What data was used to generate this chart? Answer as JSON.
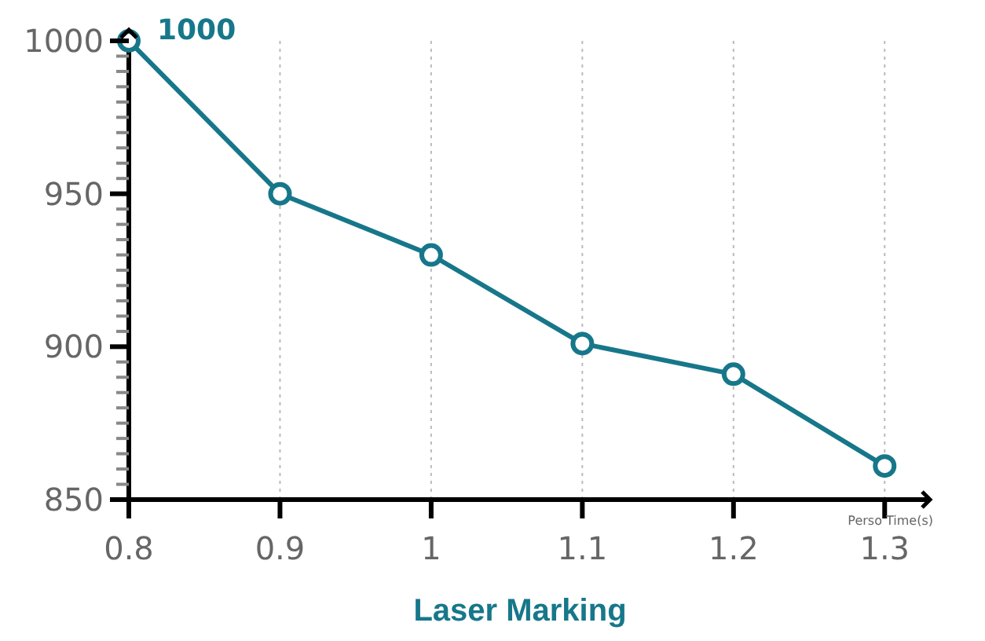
{
  "chart_data": {
    "type": "line",
    "title": "Laser Marking",
    "xlabel": "Perso Time(s)",
    "x": [
      0.8,
      0.9,
      1,
      1.1,
      1.2,
      1.3
    ],
    "series": [
      {
        "color": "#17778a",
        "values": [
          1000,
          950,
          930,
          901,
          891,
          861
        ],
        "value_labels": [
          "1000",
          null,
          null,
          null,
          null,
          null
        ]
      }
    ],
    "xlim": [
      0.8,
      1.33
    ],
    "xticks": [
      0.8,
      0.9,
      1,
      1.1,
      1.2,
      1.3
    ],
    "ylim": [
      850,
      1000
    ],
    "yticks": [
      850,
      {
        "value": 855,
        "label": null
      },
      {
        "value": 860,
        "label": null
      },
      {
        "value": 865,
        "label": null
      },
      {
        "value": 870,
        "label": null
      },
      {
        "value": 875,
        "label": null
      },
      {
        "value": 880,
        "label": null
      },
      {
        "value": 885,
        "label": null
      },
      {
        "value": 890,
        "label": null
      },
      {
        "value": 895,
        "label": null
      },
      900,
      {
        "value": 905,
        "label": null
      },
      {
        "value": 910,
        "label": null
      },
      {
        "value": 915,
        "label": null
      },
      {
        "value": 920,
        "label": null
      },
      {
        "value": 925,
        "label": null
      },
      {
        "value": 930,
        "label": null
      },
      {
        "value": 935,
        "label": null
      },
      {
        "value": 940,
        "label": null
      },
      {
        "value": 945,
        "label": null
      },
      950,
      {
        "value": 955,
        "label": null
      },
      {
        "value": 960,
        "label": null
      },
      {
        "value": 965,
        "label": null
      },
      {
        "value": 970,
        "label": null
      },
      {
        "value": 975,
        "label": null
      },
      {
        "value": 980,
        "label": null
      },
      {
        "value": 985,
        "label": null
      },
      {
        "value": 990,
        "label": null
      },
      {
        "value": 995,
        "label": null
      },
      1000
    ],
    "grid": "x",
    "marker": "circle",
    "line_style": "solid",
    "legend": false
  }
}
